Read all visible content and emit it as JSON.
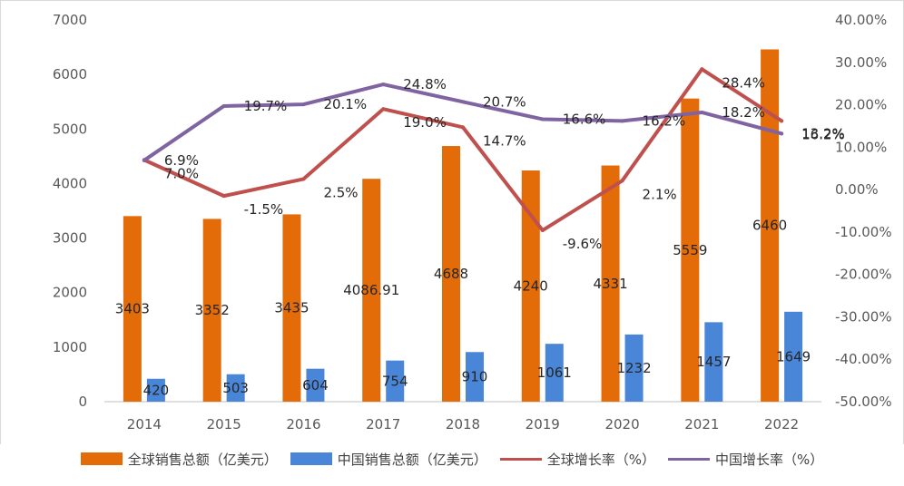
{
  "chart_data": {
    "type": "bar+line",
    "categories": [
      "2014",
      "2015",
      "2016",
      "2017",
      "2018",
      "2019",
      "2020",
      "2021",
      "2022"
    ],
    "series": [
      {
        "name": "全球销售总额（亿美元）",
        "kind": "bar",
        "axis": "left",
        "color": "#E36C09",
        "values": [
          3403,
          3352,
          3435,
          4086.91,
          4688,
          4240,
          4331,
          5559,
          6460
        ],
        "labels": [
          "3403",
          "3352",
          "3435",
          "4086.91",
          "4688",
          "4240",
          "4331",
          "5559",
          "6460"
        ]
      },
      {
        "name": "中国销售总额（亿美元）",
        "kind": "bar",
        "axis": "left",
        "color": "#4A86D8",
        "values": [
          420,
          503,
          604,
          754,
          910,
          1061,
          1232,
          1457,
          1649
        ],
        "labels": [
          "420",
          "503",
          "604",
          "754",
          "910",
          "1061",
          "1232",
          "1457",
          "1649"
        ]
      },
      {
        "name": "全球增长率（%）",
        "kind": "line",
        "axis": "right",
        "color": "#C0504D",
        "values": [
          7.0,
          -1.5,
          2.5,
          19.0,
          14.7,
          -9.6,
          2.1,
          28.4,
          16.2
        ],
        "labels": [
          "7.0%",
          "-1.5%",
          "2.5%",
          "19.0%",
          "14.7%",
          "-9.6%",
          "2.1%",
          "28.4%",
          "16.2%"
        ]
      },
      {
        "name": "中国增长率（%）",
        "kind": "line",
        "axis": "right",
        "color": "#8064A2",
        "values": [
          6.9,
          19.7,
          20.1,
          24.8,
          20.7,
          16.6,
          16.2,
          18.2,
          13.2
        ],
        "labels": [
          "6.9%",
          "19.7%",
          "20.1%",
          "24.8%",
          "20.7%",
          "16.6%",
          "16.2%",
          "18.2%",
          "13.2%"
        ]
      }
    ],
    "left_axis": {
      "ylim": [
        0,
        7000
      ],
      "ticks": [
        "0",
        "1000",
        "2000",
        "3000",
        "4000",
        "5000",
        "6000",
        "7000"
      ]
    },
    "right_axis": {
      "ylim": [
        -50,
        40
      ],
      "ticks": [
        "-50.00%",
        "-40.00%",
        "-30.00%",
        "-20.00%",
        "-10.00%",
        "0.00%",
        "10.00%",
        "20.00%",
        "30.00%",
        "40.00%"
      ]
    },
    "legend_position": "bottom",
    "grid": false,
    "colors": {
      "axis_text": "#595959",
      "label_text": "#262626",
      "axis_line": "#BFBFBF"
    }
  }
}
